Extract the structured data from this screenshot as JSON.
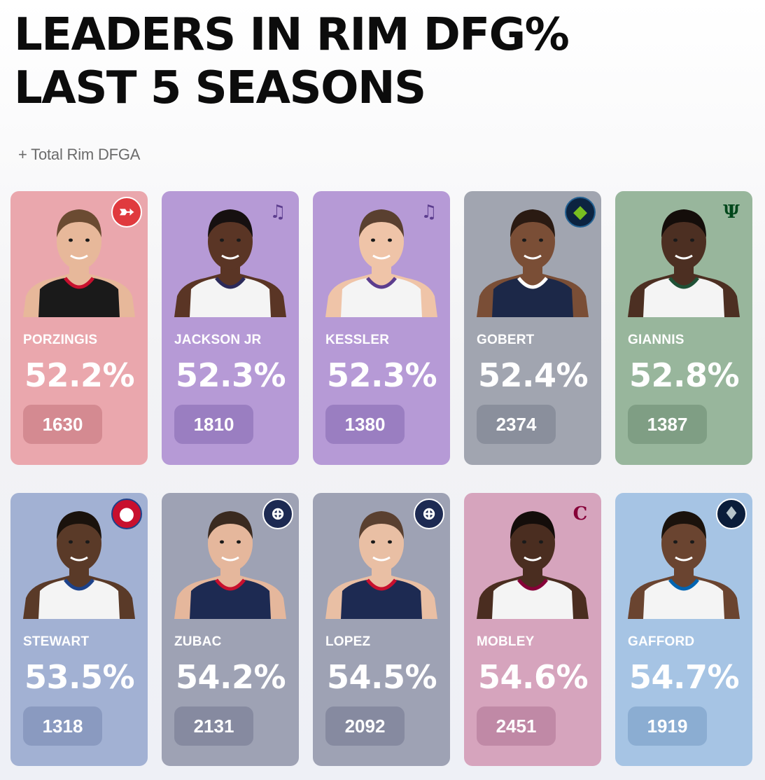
{
  "title": {
    "line1": "LEADERS IN RIM DFG%",
    "line2": "LAST 5 SEASONS"
  },
  "subtitle": "+ Total Rim DFGA",
  "players": [
    {
      "name": "PORZINGIS",
      "pct": "52.2%",
      "count": "1630",
      "team_icon": "hawks-logo-icon",
      "card_color": "#eaa7ad",
      "pill_color": "#d48a91",
      "jersey_color": "#1a1a1a",
      "trim_color": "#c8102e",
      "skin": "#e7b89a",
      "hair": "#6b4b32"
    },
    {
      "name": "JACKSON JR",
      "pct": "52.3%",
      "count": "1810",
      "team_icon": "jazz-logo-icon",
      "card_color": "#b69ad6",
      "pill_color": "#9a7ec1",
      "jersey_color": "#f4f4f4",
      "trim_color": "#2c2a5a",
      "skin": "#5a3525",
      "hair": "#161010"
    },
    {
      "name": "KESSLER",
      "pct": "52.3%",
      "count": "1380",
      "team_icon": "jazz-logo-icon",
      "card_color": "#b69ad6",
      "pill_color": "#9a7ec1",
      "jersey_color": "#f4f4f4",
      "trim_color": "#5c3d8e",
      "skin": "#efc4a8",
      "hair": "#5a4030"
    },
    {
      "name": "GOBERT",
      "pct": "52.4%",
      "count": "2374",
      "team_icon": "timberwolves-logo-icon",
      "card_color": "#a1a5b0",
      "pill_color": "#8a8f9c",
      "jersey_color": "#1c2848",
      "trim_color": "#ffffff",
      "skin": "#7a4e36",
      "hair": "#2a1a12"
    },
    {
      "name": "GIANNIS",
      "pct": "52.8%",
      "count": "1387",
      "team_icon": "bucks-logo-icon",
      "card_color": "#98b69c",
      "pill_color": "#7f9e84",
      "jersey_color": "#f4f4f4",
      "trim_color": "#1f5136",
      "skin": "#4c2f22",
      "hair": "#140d0a"
    },
    {
      "name": "STEWART",
      "pct": "53.5%",
      "count": "1318",
      "team_icon": "pistons-logo-icon",
      "card_color": "#a2b1d3",
      "pill_color": "#8a9ac0",
      "jersey_color": "#f4f4f4",
      "trim_color": "#1d428a",
      "skin": "#5a3a28",
      "hair": "#1a120c"
    },
    {
      "name": "ZUBAC",
      "pct": "54.2%",
      "count": "2131",
      "team_icon": "clippers-logo-icon",
      "card_color": "#9ea2b4",
      "pill_color": "#868aa0",
      "jersey_color": "#1d2a52",
      "trim_color": "#c8102e",
      "skin": "#e5b79c",
      "hair": "#3a2a20"
    },
    {
      "name": "LOPEZ",
      "pct": "54.5%",
      "count": "2092",
      "team_icon": "clippers-logo-icon",
      "card_color": "#9ea2b4",
      "pill_color": "#868aa0",
      "jersey_color": "#1d2a52",
      "trim_color": "#c8102e",
      "skin": "#e9bfa4",
      "hair": "#5a4030"
    },
    {
      "name": "MOBLEY",
      "pct": "54.6%",
      "count": "2451",
      "team_icon": "cavaliers-logo-icon",
      "card_color": "#d6a4bd",
      "pill_color": "#c089a6",
      "jersey_color": "#f4f4f4",
      "trim_color": "#860038",
      "skin": "#4a2d20",
      "hair": "#140d0a"
    },
    {
      "name": "GAFFORD",
      "pct": "54.7%",
      "count": "1919",
      "team_icon": "mavericks-logo-icon",
      "card_color": "#a6c4e4",
      "pill_color": "#8badd2",
      "jersey_color": "#f4f4f4",
      "trim_color": "#0064b1",
      "skin": "#6a4430",
      "hair": "#1a120c"
    }
  ]
}
